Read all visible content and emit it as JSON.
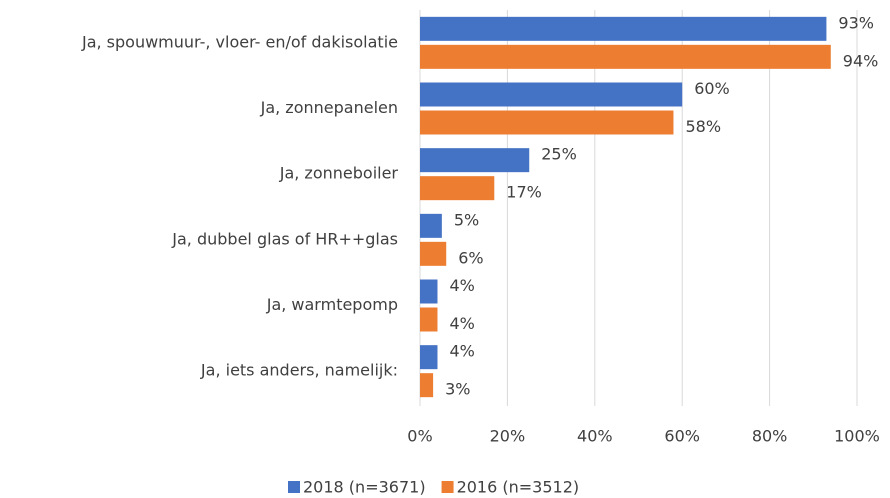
{
  "chart_data": {
    "type": "barh",
    "categories": [
      "Ja, spouwmuur-, vloer- en/of dakisolatie",
      "Ja, zonnepanelen",
      "Ja, zonneboiler",
      "Ja, dubbel glas of HR++glas",
      "Ja, warmtepomp",
      "Ja, iets anders, namelijk:"
    ],
    "series": [
      {
        "name": "2018 (n=3671)",
        "color": "#4472c4",
        "values": [
          93,
          60,
          25,
          5,
          4,
          4
        ],
        "value_labels": [
          "93%",
          "60%",
          "25%",
          "5%",
          "4%",
          "4%"
        ]
      },
      {
        "name": "2016 (n=3512)",
        "color": "#ed7d31",
        "values": [
          94,
          58,
          17,
          6,
          4,
          3
        ],
        "value_labels": [
          "94%",
          "58%",
          "17%",
          "6%",
          "4%",
          "3%"
        ]
      }
    ],
    "xlim": [
      0,
      100
    ],
    "xticks": [
      {
        "value": 0,
        "label": "0%"
      },
      {
        "value": 20,
        "label": "20%"
      },
      {
        "value": 40,
        "label": "40%"
      },
      {
        "value": 60,
        "label": "60%"
      },
      {
        "value": 80,
        "label": "80%"
      },
      {
        "value": 100,
        "label": "100%"
      }
    ],
    "grid": true,
    "legend": "bottom"
  }
}
